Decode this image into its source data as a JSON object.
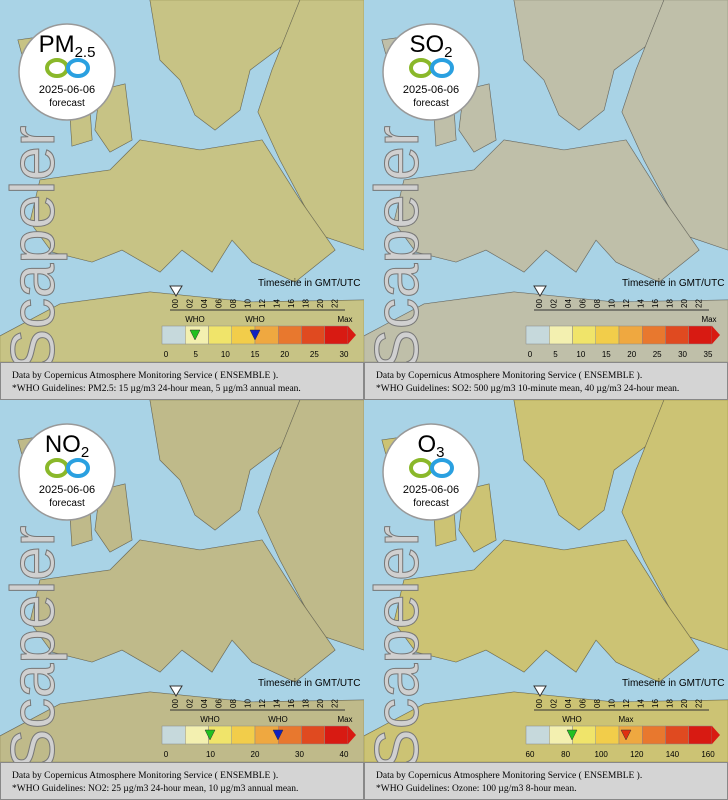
{
  "panels": [
    {
      "pollutant": "PM",
      "subscript": "2.5",
      "date": "2025-06-06",
      "forecast": "forecast",
      "brand": "Scapeler",
      "timeserie": "Timeserie in GMT/UTC",
      "hours": [
        "00",
        "02",
        "04",
        "06",
        "08",
        "10",
        "12",
        "14",
        "16",
        "18",
        "20",
        "22"
      ],
      "scale": [
        0,
        5,
        10,
        15,
        20,
        25,
        30
      ],
      "markers": [
        "WHO",
        "WHO",
        "Max"
      ],
      "footer": [
        "Data by Copernicus Atmosphere Monitoring Service ( ENSEMBLE ).",
        "*WHO Guidelines: PM2.5: 15 µg/m3 24-hour mean, 5 µg/m3 annual mean."
      ]
    },
    {
      "pollutant": "SO",
      "subscript": "2",
      "date": "2025-06-06",
      "forecast": "forecast",
      "brand": "Scapeler",
      "timeserie": "Timeserie in GMT/UTC",
      "hours": [
        "00",
        "02",
        "04",
        "06",
        "08",
        "10",
        "12",
        "14",
        "16",
        "18",
        "20",
        "22"
      ],
      "scale": [
        0,
        5,
        10,
        15,
        20,
        25,
        30,
        35
      ],
      "markers": [
        "Max"
      ],
      "footer": [
        "Data by Copernicus Atmosphere Monitoring Service ( ENSEMBLE ).",
        "*WHO Guidelines: SO2: 500 µg/m3 10-minute mean, 40 µg/m3 24-hour mean."
      ]
    },
    {
      "pollutant": "NO",
      "subscript": "2",
      "date": "2025-06-06",
      "forecast": "forecast",
      "brand": "Scapeler",
      "timeserie": "Timeserie in GMT/UTC",
      "hours": [
        "00",
        "02",
        "04",
        "06",
        "08",
        "10",
        "12",
        "14",
        "16",
        "18",
        "20",
        "22"
      ],
      "scale": [
        0,
        10,
        20,
        30,
        40
      ],
      "markers": [
        "WHO",
        "WHO",
        "Max"
      ],
      "footer": [
        "Data by Copernicus Atmosphere Monitoring Service ( ENSEMBLE ).",
        "*WHO Guidelines: NO2: 25 µg/m3 24-hour mean, 10 µg/m3 annual mean."
      ]
    },
    {
      "pollutant": "O",
      "subscript": "3",
      "date": "2025-06-06",
      "forecast": "forecast",
      "brand": "Scapeler",
      "timeserie": "Timeserie in GMT/UTC",
      "hours": [
        "00",
        "02",
        "04",
        "06",
        "08",
        "10",
        "12",
        "14",
        "16",
        "18",
        "20",
        "22"
      ],
      "scale": [
        60,
        80,
        100,
        120,
        140,
        160
      ],
      "markers": [
        "WHO",
        "Max"
      ],
      "footer": [
        "Data by Copernicus Atmosphere Monitoring Service ( ENSEMBLE ).",
        "*WHO Guidelines: Ozone: 100 µg/m3 8-hour mean."
      ]
    }
  ]
}
